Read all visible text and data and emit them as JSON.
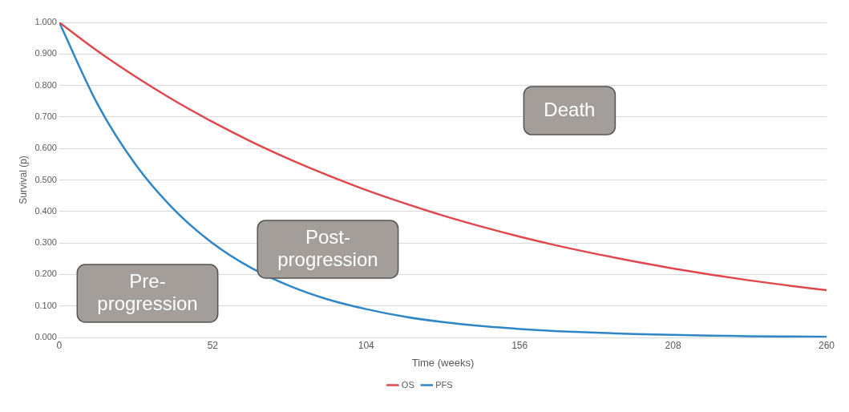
{
  "chart_data": {
    "type": "line",
    "xlabel": "Time (weeks)",
    "ylabel": "Survival (p)",
    "x": [
      0,
      13,
      26,
      39,
      52,
      65,
      78,
      91,
      104,
      117,
      130,
      143,
      156,
      169,
      182,
      195,
      208,
      221,
      234,
      247,
      260
    ],
    "series": [
      {
        "name": "OS",
        "color": "#e0474c",
        "values": [
          1,
          0.909,
          0.827,
          0.752,
          0.684,
          0.622,
          0.566,
          0.515,
          0.468,
          0.426,
          0.387,
          0.352,
          0.32,
          0.291,
          0.265,
          0.241,
          0.219,
          0.199,
          0.181,
          0.165,
          0.15
        ]
      },
      {
        "name": "PFS",
        "color": "#2e86c8",
        "values": [
          1,
          0.74,
          0.547,
          0.405,
          0.299,
          0.221,
          0.164,
          0.121,
          0.09,
          0.066,
          0.049,
          0.036,
          0.027,
          0.02,
          0.015,
          0.011,
          0.008,
          0.006,
          0.004,
          0.003,
          0.002
        ]
      }
    ],
    "xlim": [
      0,
      260
    ],
    "xticks": [
      0,
      52,
      104,
      156,
      208,
      260
    ],
    "ylim": [
      0,
      1
    ],
    "yticks": [
      {
        "value": 0,
        "label": "0.000"
      },
      {
        "value": 0.1,
        "label": "0.100"
      },
      {
        "value": 0.2,
        "label": "0.200"
      },
      {
        "value": 0.3,
        "label": "0.300"
      },
      {
        "value": 0.4,
        "label": "0.400"
      },
      {
        "value": 0.5,
        "label": "0.500"
      },
      {
        "value": 0.6,
        "label": "0.600"
      },
      {
        "value": 0.7,
        "label": "0.700"
      },
      {
        "value": 0.8,
        "label": "0.800"
      },
      {
        "value": 0.9,
        "label": "0.900"
      },
      {
        "value": 1,
        "label": "1.000"
      }
    ],
    "grid": "y",
    "legend": "bottom",
    "marker": "none",
    "line_style": "solid",
    "annotations": [
      "Death",
      "Post-progression",
      "Pre-progression"
    ]
  }
}
